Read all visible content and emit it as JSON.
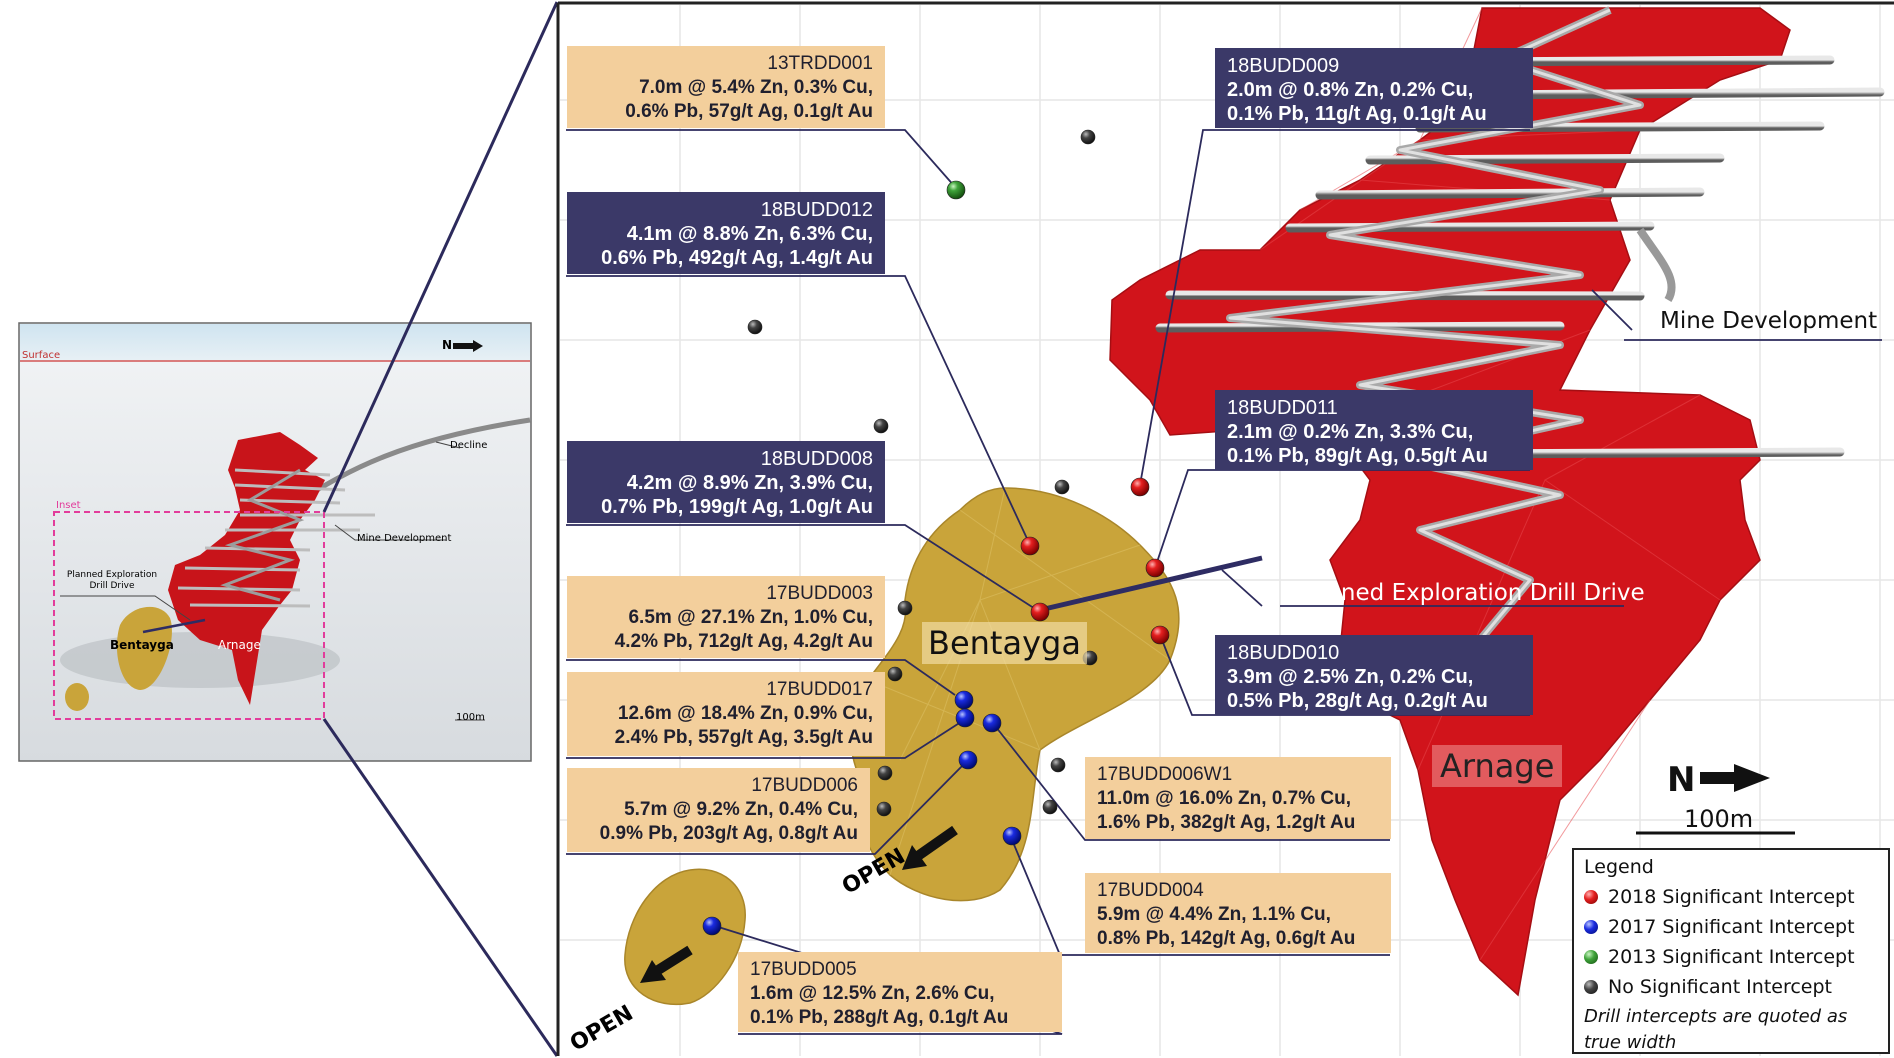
{
  "inset": {
    "surface_label": "Surface",
    "north_label": "N",
    "decline_label": "Decline",
    "inset_label": "Inset",
    "mine_dev_label": "Mine Development",
    "planned_drive_label": "Planned Exploration Drill Drive",
    "bentayga_label": "Bentayga",
    "arnage_label": "Arnage",
    "scale_label": "100m"
  },
  "map": {
    "bentayga_label": "Bentayga",
    "arnage_label": "Arnage",
    "mine_dev_label": "Mine Development",
    "planned_drive_label": "Planned Exploration Drill Drive",
    "open_label_1": "OPEN",
    "open_label_2": "OPEN",
    "north_label": "N",
    "scale_label": "100m"
  },
  "intercepts": [
    {
      "id": "13TRDD001",
      "l1": "7.0m @ 5.4% Zn, 0.3% Cu,",
      "l2": "0.6% Pb, 57g/t Ag, 0.1g/t Au",
      "year": "2013"
    },
    {
      "id": "18BUDD012",
      "l1": "4.1m @ 8.8% Zn, 6.3% Cu,",
      "l2": "0.6% Pb, 492g/t Ag, 1.4g/t Au",
      "year": "2018"
    },
    {
      "id": "18BUDD008",
      "l1": "4.2m @ 8.9% Zn, 3.9% Cu,",
      "l2": "0.7% Pb, 199g/t Ag, 1.0g/t Au",
      "year": "2018"
    },
    {
      "id": "17BUDD003",
      "l1": "6.5m @ 27.1% Zn, 1.0% Cu,",
      "l2": "4.2% Pb, 712g/t Ag, 4.2g/t Au",
      "year": "2017"
    },
    {
      "id": "17BUDD017",
      "l1": "12.6m @ 18.4% Zn, 0.9% Cu,",
      "l2": "2.4% Pb, 557g/t Ag, 3.5g/t Au",
      "year": "2017"
    },
    {
      "id": "17BUDD006",
      "l1": "5.7m @ 9.2% Zn, 0.4% Cu,",
      "l2": "0.9% Pb, 203g/t Ag, 0.8g/t Au",
      "year": "2017"
    },
    {
      "id": "17BUDD005",
      "l1": "1.6m @ 12.5% Zn, 2.6% Cu,",
      "l2": "0.1% Pb, 288g/t Ag, 0.1g/t Au",
      "year": "2017"
    },
    {
      "id": "18BUDD009",
      "l1": "2.0m @ 0.8% Zn, 0.2% Cu,",
      "l2": "0.1% Pb, 11g/t Ag, 0.1g/t Au",
      "year": "2018"
    },
    {
      "id": "18BUDD011",
      "l1": "2.1m @ 0.2% Zn, 3.3% Cu,",
      "l2": "0.1% Pb, 89g/t Ag, 0.5g/t Au",
      "year": "2018"
    },
    {
      "id": "18BUDD010",
      "l1": "3.9m @ 2.5% Zn, 0.2% Cu,",
      "l2": "0.5% Pb, 28g/t Ag, 0.2g/t Au",
      "year": "2018"
    },
    {
      "id": "17BUDD006W1",
      "l1": "11.0m @ 16.0% Zn, 0.7% Cu,",
      "l2": "1.6% Pb, 382g/t Ag, 1.2g/t Au",
      "year": "2017"
    },
    {
      "id": "17BUDD004",
      "l1": "5.9m @ 4.4% Zn, 1.1% Cu,",
      "l2": "0.8% Pb, 142g/t Ag, 0.6g/t Au",
      "year": "2017"
    }
  ],
  "legend": {
    "title": "Legend",
    "items": [
      {
        "label": "2018 Significant Intercept",
        "color": "#e41f1f"
      },
      {
        "label": "2017 Significant Intercept",
        "color": "#1a2be0"
      },
      {
        "label": "2013 Significant Intercept",
        "color": "#3fa33a"
      },
      {
        "label": "No Significant Intercept",
        "color": "#333333"
      }
    ],
    "note_1": "Drill intercepts are quoted as",
    "note_2": "true width"
  },
  "colors": {
    "ore_red": "#d1141b",
    "bentayga_gold": "#c9a43a",
    "label_navy": "#3b3968",
    "label_tan": "#f3cf9c",
    "drive_line": "#2e2c63"
  }
}
